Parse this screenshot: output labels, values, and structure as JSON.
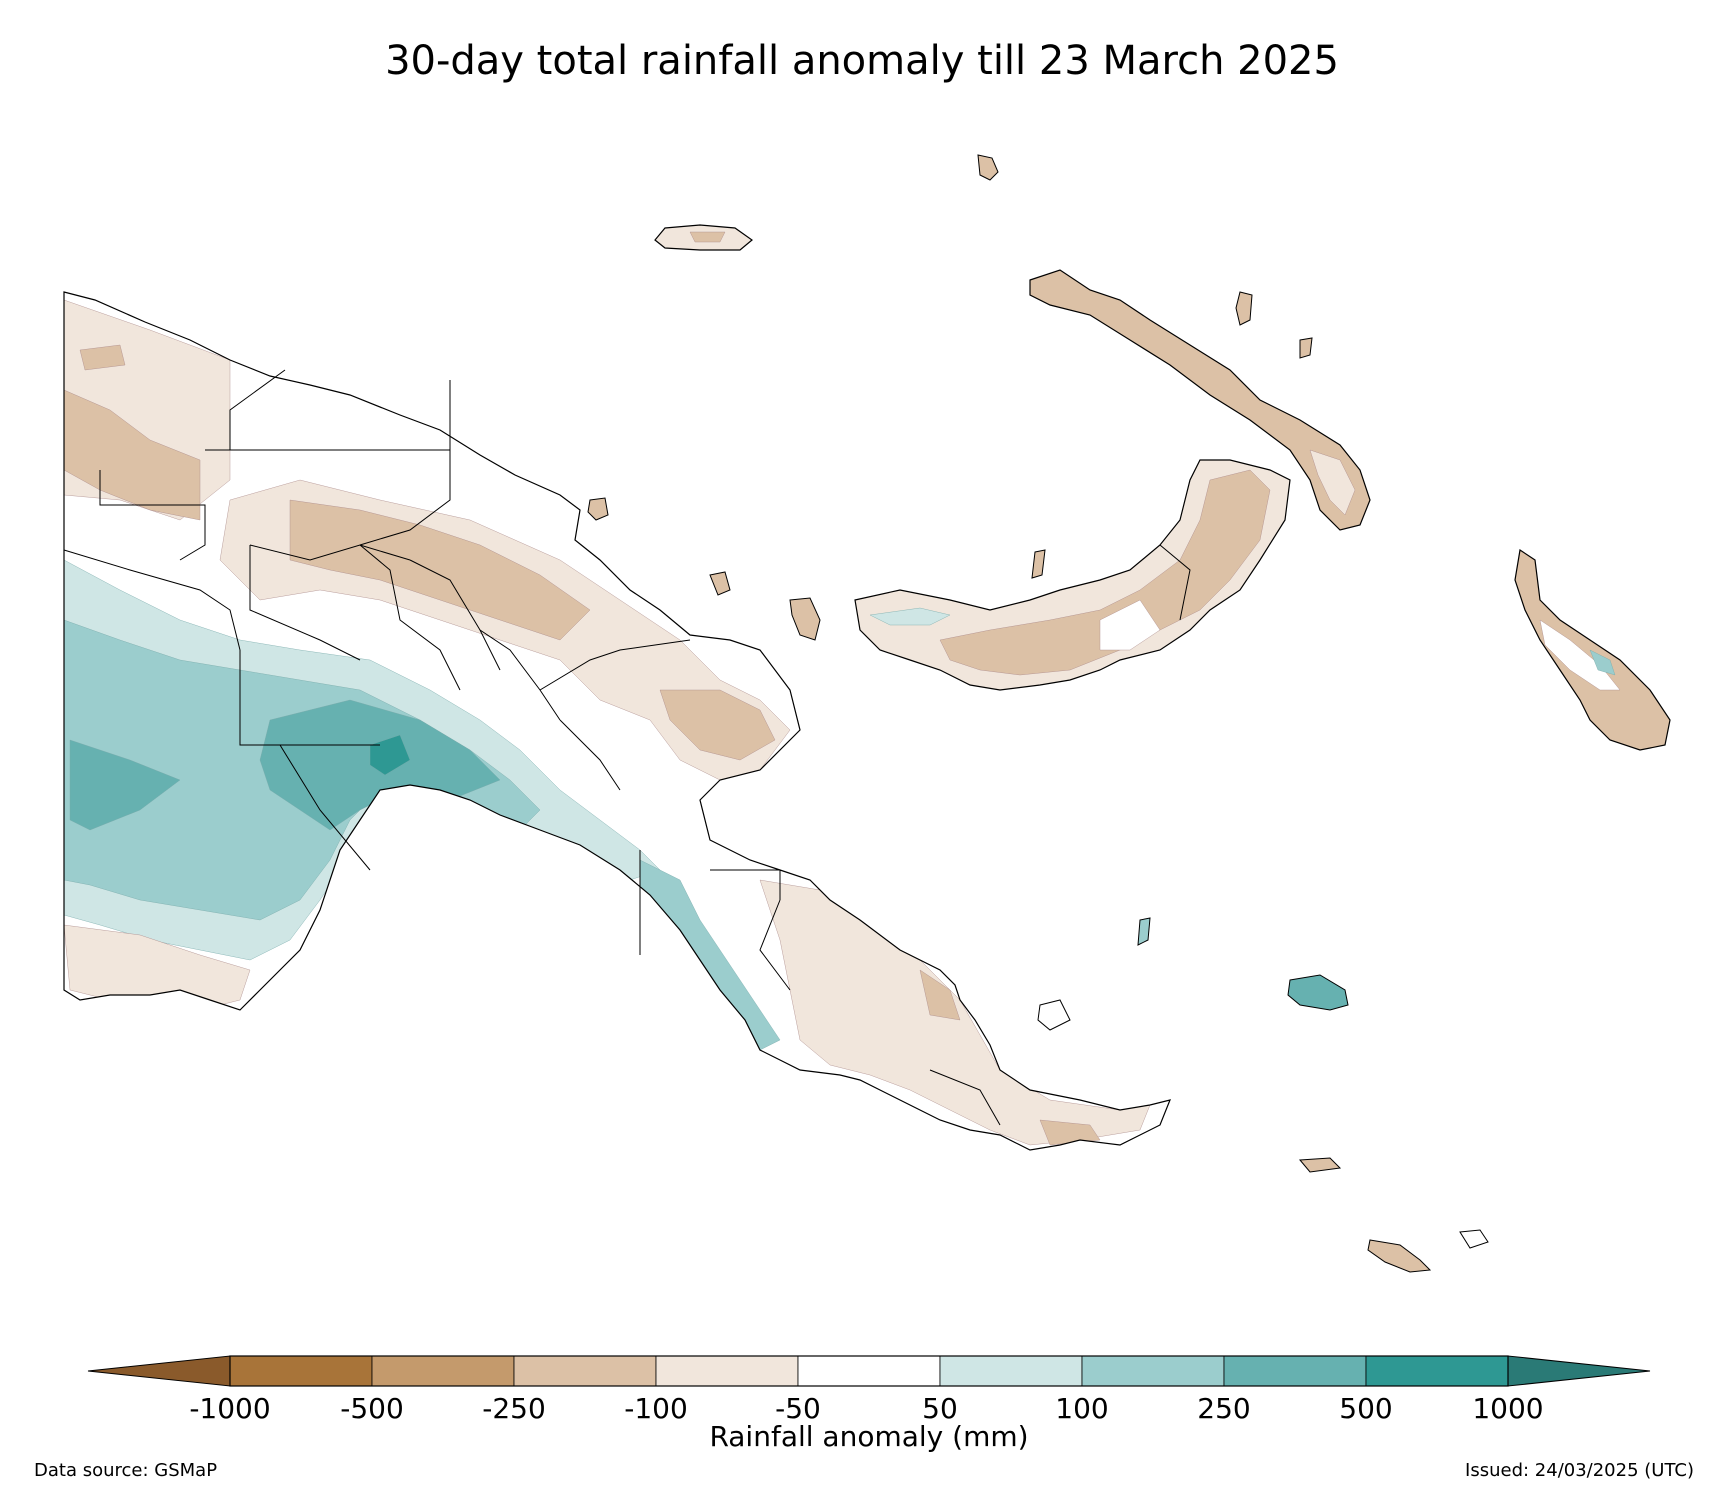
{
  "title": "30-day total rainfall anomaly till 23 March 2025",
  "legend": {
    "title": "Rainfall anomaly (mm)",
    "tick_labels": [
      "-1000",
      "-500",
      "-250",
      "-100",
      "-50",
      "50",
      "100",
      "250",
      "500",
      "1000"
    ],
    "under_color": "#8a5a2b",
    "over_color": "#2a7a76",
    "bin_colors": [
      "#a87439",
      "#c49a6c",
      "#dcc1a6",
      "#f1e6dc",
      "#ffffff",
      "#cfe6e5",
      "#9bcdcd",
      "#66b1b0",
      "#2e9893"
    ]
  },
  "source": "Data source: GSMaP",
  "issued": "Issued: 24/03/2025 (UTC)"
}
